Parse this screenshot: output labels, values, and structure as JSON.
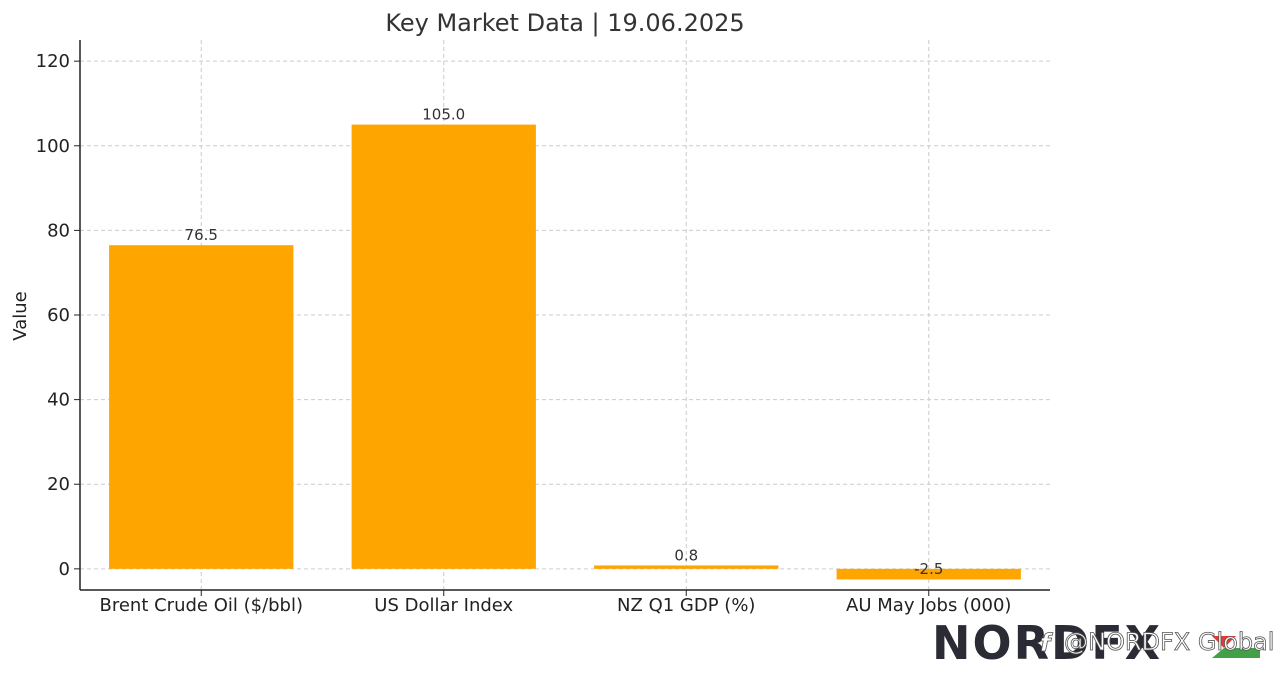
{
  "chart_data": {
    "type": "bar",
    "title": "Key Market Data | 19.06.2025",
    "xlabel": "",
    "ylabel": "Value",
    "categories": [
      "Brent Crude Oil ($/bbl)",
      "US Dollar Index",
      "NZ Q1 GDP (%)",
      "AU May Jobs (000)"
    ],
    "values": [
      76.5,
      105.0,
      0.8,
      -2.5
    ],
    "value_labels": [
      "76.5",
      "105.0",
      "0.8",
      "-2.5"
    ],
    "ylim": [
      -5,
      125
    ],
    "yticks": [
      0,
      20,
      40,
      60,
      80,
      100,
      120
    ],
    "grid": true,
    "colors": {
      "bar": "#ffa500",
      "grid": "#cccccc",
      "axis": "#222222"
    }
  },
  "branding": {
    "logo_text": "NORDFX",
    "watermark_text": "@NORDFX Global",
    "watermark_icon": "facebook-icon",
    "logo_accent_colors": [
      "#e53935",
      "#ffffff",
      "#43a047"
    ]
  }
}
